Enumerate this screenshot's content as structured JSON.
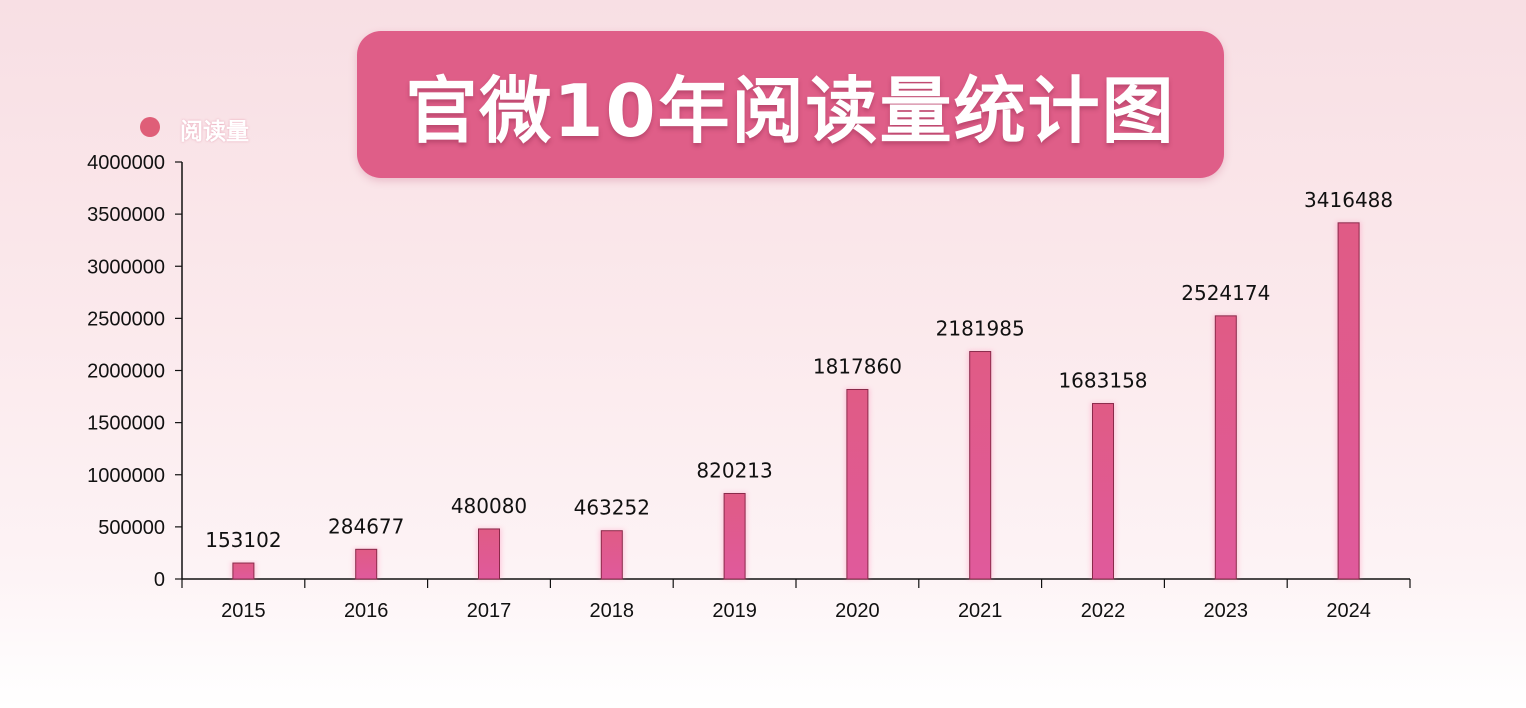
{
  "title": "官微10年阅读量统计图",
  "legend": {
    "label": "阅读量"
  },
  "colors": {
    "bar": "#e05b85",
    "title_bg": "#df5e88",
    "legend_dot": "#df5e78",
    "axis": "#111111"
  },
  "chart_data": {
    "type": "bar",
    "title": "官微10年阅读量统计图",
    "categories": [
      "2015",
      "2016",
      "2017",
      "2018",
      "2019",
      "2020",
      "2021",
      "2022",
      "2023",
      "2024"
    ],
    "series": [
      {
        "name": "阅读量",
        "values": [
          153102,
          284677,
          480080,
          463252,
          820213,
          1817860,
          2181985,
          1683158,
          2524174,
          3416488
        ]
      }
    ],
    "ylim": [
      0,
      4000000
    ],
    "yticks": [
      0,
      500000,
      1000000,
      1500000,
      2000000,
      2500000,
      3000000,
      3500000,
      4000000
    ],
    "data_labels": true,
    "grid": false,
    "legend_position": "top-left",
    "xlabel": "",
    "ylabel": ""
  }
}
